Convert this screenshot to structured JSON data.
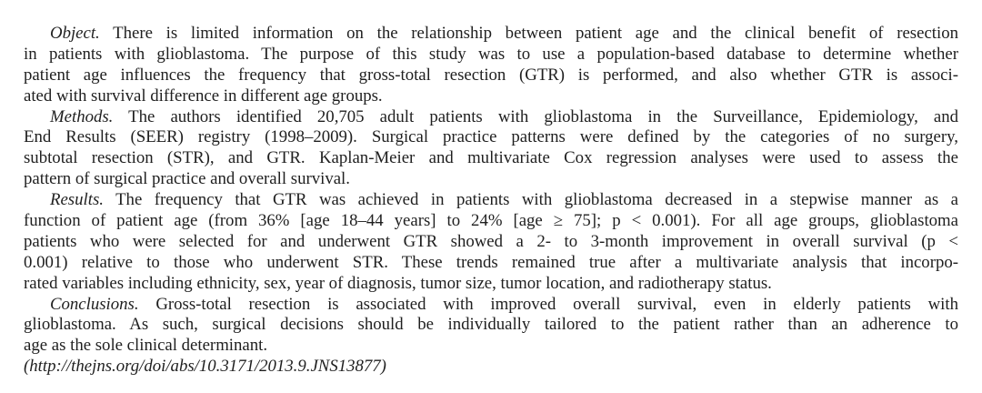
{
  "document": {
    "kind": "journal-abstract",
    "text_color": "#1f1f1f",
    "background_color": "#ffffff"
  },
  "abstract": {
    "paragraphs": [
      {
        "name": "object",
        "lines": [
          {
            "lead": "Object.",
            "text": "There is limited information on the relationship between patient age and the clinical benefit of resection",
            "indent": true,
            "justify": true
          },
          {
            "lead": "",
            "text": "in patients with glioblastoma. The purpose of this study was to use a population-based database to determine whether",
            "indent": false,
            "justify": true
          },
          {
            "lead": "",
            "text": "patient age influences the frequency that gross-total resection (GTR) is performed, and also whether GTR is associ-",
            "indent": false,
            "justify": true
          },
          {
            "lead": "",
            "text": "ated with survival difference in different age groups.",
            "indent": false,
            "justify": false
          }
        ]
      },
      {
        "name": "methods",
        "lines": [
          {
            "lead": "Methods.",
            "text": "The authors identified 20,705 adult patients with glioblastoma in the Surveillance, Epidemiology, and",
            "indent": true,
            "justify": true
          },
          {
            "lead": "",
            "text": "End Results (SEER) registry (1998–2009). Surgical practice patterns were defined by the categories of no surgery,",
            "indent": false,
            "justify": true
          },
          {
            "lead": "",
            "text": "subtotal resection (STR), and GTR. Kaplan-Meier and multivariate Cox regression analyses were used to assess the",
            "indent": false,
            "justify": true
          },
          {
            "lead": "",
            "text": "pattern of surgical practice and overall survival.",
            "indent": false,
            "justify": false
          }
        ]
      },
      {
        "name": "results",
        "lines": [
          {
            "lead": "Results.",
            "text": "The frequency that GTR was achieved in patients with glioblastoma decreased in a stepwise manner as a",
            "indent": true,
            "justify": true
          },
          {
            "lead": "",
            "text": "function of patient age (from 36% [age 18–44 years] to 24% [age ≥ 75]; p < 0.001). For all age groups, glioblastoma",
            "indent": false,
            "justify": true
          },
          {
            "lead": "",
            "text": "patients who were selected for and underwent GTR showed a 2- to 3-month improvement in overall survival (p <",
            "indent": false,
            "justify": true
          },
          {
            "lead": "",
            "text": "0.001) relative to those who underwent STR. These trends remained true after a multivariate analysis that incorpo-",
            "indent": false,
            "justify": true
          },
          {
            "lead": "",
            "text": "rated variables including ethnicity, sex, year of diagnosis, tumor size, tumor location, and radiotherapy status.",
            "indent": false,
            "justify": false
          }
        ]
      },
      {
        "name": "conclusions",
        "lines": [
          {
            "lead": "Conclusions.",
            "text": "Gross-total resection is associated with improved overall survival, even in elderly patients with",
            "indent": true,
            "justify": true
          },
          {
            "lead": "",
            "text": "glioblastoma. As such, surgical decisions should be individually tailored to the patient rather than an adherence to",
            "indent": false,
            "justify": true
          },
          {
            "lead": "",
            "text": "age as the sole clinical determinant.",
            "indent": false,
            "justify": false
          }
        ]
      },
      {
        "name": "doi-url",
        "lines": [
          {
            "lead": "",
            "text": "(http://thejns.org/doi/abs/10.3171/2013.9.JNS13877)",
            "indent": false,
            "justify": false,
            "italic": true
          }
        ]
      }
    ]
  }
}
